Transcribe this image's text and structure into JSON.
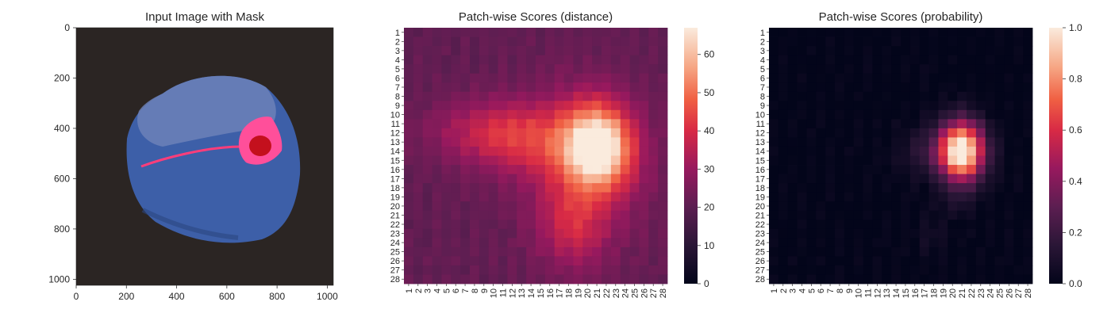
{
  "figure": {
    "panels": [
      {
        "title": "Input Image with Mask"
      },
      {
        "title": "Patch-wise Scores (distance)"
      },
      {
        "title": "Patch-wise Scores (probability)"
      }
    ]
  },
  "chart_data": [
    {
      "type": "image",
      "title": "Input Image with Mask",
      "xlim": [
        0,
        1024
      ],
      "ylim": [
        1024,
        0
      ],
      "xticks": [
        0,
        200,
        400,
        600,
        800,
        1000
      ],
      "yticks": [
        0,
        200,
        400,
        600,
        800,
        1000
      ],
      "image_description_colors": {
        "background": "#2b2523",
        "object": "#3d5fa8",
        "mask": "#ff3d7a"
      }
    },
    {
      "type": "heatmap",
      "title": "Patch-wise Scores (distance)",
      "rows": 28,
      "cols": 28,
      "x_tick_labels": [
        "1",
        "2",
        "3",
        "4",
        "5",
        "6",
        "7",
        "8",
        "9",
        "10",
        "11",
        "12",
        "13",
        "14",
        "15",
        "16",
        "17",
        "18",
        "19",
        "20",
        "21",
        "22",
        "23",
        "24",
        "25",
        "26",
        "27",
        "28"
      ],
      "y_tick_labels": [
        "1",
        "2",
        "3",
        "4",
        "5",
        "6",
        "7",
        "8",
        "9",
        "10",
        "11",
        "12",
        "13",
        "14",
        "15",
        "16",
        "17",
        "18",
        "19",
        "20",
        "21",
        "22",
        "23",
        "24",
        "25",
        "26",
        "27",
        "28"
      ],
      "colorbar": {
        "min": 0,
        "max": 67,
        "ticks": [
          0,
          10,
          20,
          30,
          40,
          50,
          60
        ],
        "colormap": "rocket"
      },
      "model": {
        "base": 21,
        "blobs": [
          {
            "cx": 21,
            "cy": 13.5,
            "sx": 2.6,
            "sy": 3.2,
            "amp": 46
          },
          {
            "cx": 19.5,
            "cy": 16,
            "sx": 4.5,
            "sy": 6,
            "amp": 12
          },
          {
            "cx": 10,
            "cy": 12,
            "sx": 4.5,
            "sy": 2.5,
            "amp": 16
          },
          {
            "cx": 18.5,
            "cy": 22.5,
            "sx": 2.5,
            "sy": 3,
            "amp": 12
          },
          {
            "cx": 14,
            "cy": 13,
            "sx": 3,
            "sy": 3,
            "amp": 8
          }
        ],
        "max": 67
      }
    },
    {
      "type": "heatmap",
      "title": "Patch-wise Scores (probability)",
      "rows": 28,
      "cols": 28,
      "x_tick_labels": [
        "1",
        "2",
        "3",
        "4",
        "5",
        "6",
        "7",
        "8",
        "9",
        "10",
        "11",
        "12",
        "13",
        "14",
        "15",
        "16",
        "17",
        "18",
        "19",
        "20",
        "21",
        "22",
        "23",
        "24",
        "25",
        "26",
        "27",
        "28"
      ],
      "y_tick_labels": [
        "1",
        "2",
        "3",
        "4",
        "5",
        "6",
        "7",
        "8",
        "9",
        "10",
        "11",
        "12",
        "13",
        "14",
        "15",
        "16",
        "17",
        "18",
        "19",
        "20",
        "21",
        "22",
        "23",
        "24",
        "25",
        "26",
        "27",
        "28"
      ],
      "colorbar": {
        "min": 0,
        "max": 1,
        "ticks": [
          0.0,
          0.2,
          0.4,
          0.6,
          0.8,
          1.0
        ],
        "tick_labels": [
          "0.0",
          "0.2",
          "0.4",
          "0.6",
          "0.8",
          "1.0"
        ],
        "colormap": "rocket"
      },
      "model": {
        "base": 0,
        "blobs": [
          {
            "cx": 21,
            "cy": 14,
            "sx": 1.6,
            "sy": 2.3,
            "amp": 1.0
          },
          {
            "cx": 19,
            "cy": 14,
            "sx": 3,
            "sy": 2,
            "amp": 0.18
          },
          {
            "cx": 20.5,
            "cy": 19.5,
            "sx": 1.5,
            "sy": 1.5,
            "amp": 0.06
          },
          {
            "cx": 17.5,
            "cy": 23.5,
            "sx": 1.2,
            "sy": 1.5,
            "amp": 0.06
          }
        ],
        "max": 1
      }
    }
  ]
}
